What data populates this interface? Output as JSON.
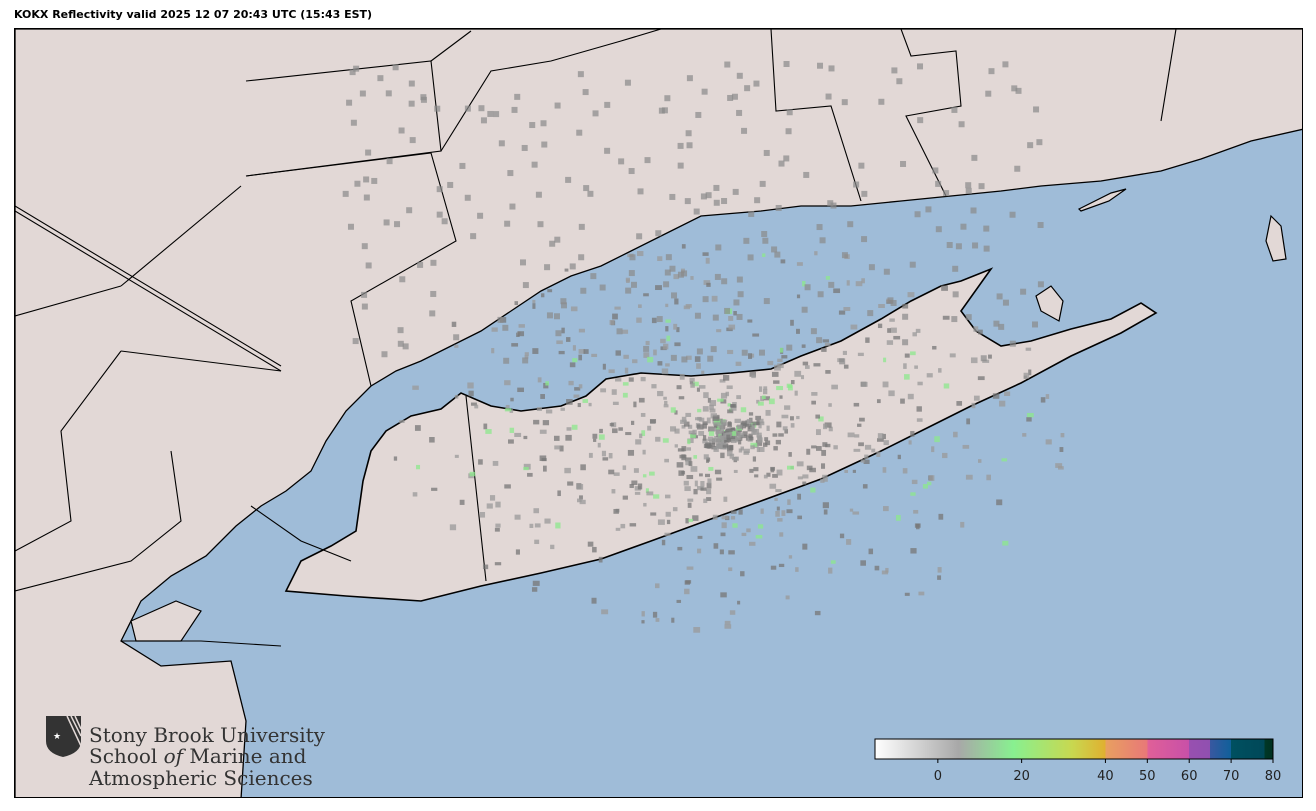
{
  "title": "KOKX Reflectivity valid 2025 12 07 20:43 UTC (15:43 EST)",
  "colors": {
    "ocean": "#9fbcd8",
    "land": "#e2d8d6",
    "border": "#000000",
    "lakes": "#9fbcd8"
  },
  "logo": {
    "line1": "Stony Brook University",
    "line2a": "School ",
    "line2b": "of",
    "line2c": " Marine and",
    "line3": "Atmospheric Sciences"
  },
  "colorbar": {
    "range": [
      -15,
      80
    ],
    "units_label": "",
    "ticks": [
      {
        "value": 0,
        "label": "0"
      },
      {
        "value": 20,
        "label": "20"
      },
      {
        "value": 40,
        "label": "40"
      },
      {
        "value": 50,
        "label": "50"
      },
      {
        "value": 60,
        "label": "60"
      },
      {
        "value": 70,
        "label": "70"
      },
      {
        "value": 80,
        "label": "80"
      }
    ],
    "stops": [
      {
        "value": -15,
        "color": "#ffffff"
      },
      {
        "value": 5,
        "color": "#a8a8a8"
      },
      {
        "value": 18,
        "color": "#88f090"
      },
      {
        "value": 32,
        "color": "#c8d850"
      },
      {
        "value": 40,
        "color": "#e0b030"
      },
      {
        "value": 40.01,
        "color": "#e8a060"
      },
      {
        "value": 50,
        "color": "#e87878"
      },
      {
        "value": 50.01,
        "color": "#e06098"
      },
      {
        "value": 60,
        "color": "#c850a8"
      },
      {
        "value": 60.01,
        "color": "#9850b0"
      },
      {
        "value": 65,
        "color": "#9050b0"
      },
      {
        "value": 65.01,
        "color": "#3858a0"
      },
      {
        "value": 70,
        "color": "#10609a"
      },
      {
        "value": 70.01,
        "color": "#005060"
      },
      {
        "value": 78,
        "color": "#004858"
      },
      {
        "value": 78.01,
        "color": "#003828"
      },
      {
        "value": 80,
        "color": "#003020"
      }
    ]
  }
}
